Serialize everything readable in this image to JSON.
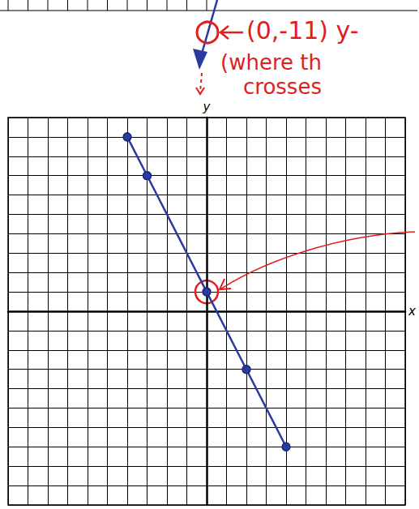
{
  "chart_data": {
    "type": "line",
    "x": [
      -4,
      -3,
      0,
      2,
      4
    ],
    "values": [
      9,
      7,
      1,
      -3,
      -7
    ],
    "color": "#2b3aa0",
    "marker": "circle",
    "xlim": [
      -10,
      10
    ],
    "ylim": [
      -10,
      10
    ],
    "xticks": [
      -10,
      -9,
      -8,
      -7,
      -6,
      -5,
      -4,
      -3,
      -2,
      -1,
      0,
      1,
      2,
      3,
      4,
      5,
      6,
      7,
      8,
      9,
      10
    ],
    "yticks": [
      -10,
      -9,
      -8,
      -7,
      -6,
      -5,
      -4,
      -3,
      -2,
      -1,
      0,
      1,
      2,
      3,
      4,
      5,
      6,
      7,
      8,
      9,
      10
    ],
    "grid": true,
    "tick_labels": false,
    "x_label": "x",
    "y_label": "y",
    "annotations": [
      "(0,-11) y-",
      "(where th",
      "crosses"
    ]
  }
}
